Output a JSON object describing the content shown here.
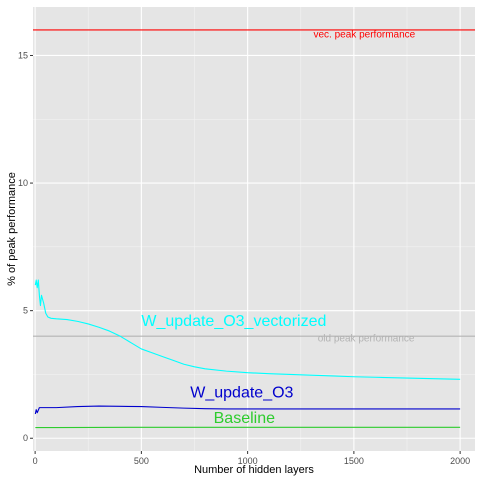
{
  "chart_data": {
    "type": "line",
    "title": "",
    "xlabel": "Number of hidden layers",
    "ylabel": "% of peak performance",
    "xlim": [
      -10,
      2070
    ],
    "ylim": [
      -0.5,
      16.9
    ],
    "x_ticks": [
      0,
      500,
      1000,
      1500,
      2000
    ],
    "x_tick_labels": [
      "0",
      "500",
      "1000",
      "1500",
      "2000"
    ],
    "y_ticks": [
      0,
      5,
      10,
      15
    ],
    "y_tick_labels": [
      "0",
      "5",
      "10",
      "15"
    ],
    "grid": true,
    "background": "#e5e5e5",
    "series": [
      {
        "name": "W_update_O3_vectorized",
        "color": "#00ffff",
        "x": [
          1,
          5,
          10,
          15,
          20,
          25,
          30,
          40,
          50,
          60,
          75,
          100,
          150,
          200,
          250,
          300,
          350,
          400,
          450,
          500,
          550,
          600,
          650,
          700,
          750,
          800,
          900,
          1000,
          1100,
          1200,
          1300,
          1400,
          1500,
          1600,
          1700,
          1800,
          1900,
          2000
        ],
        "y": [
          6.0,
          6.2,
          5.9,
          6.2,
          5.6,
          5.2,
          5.6,
          5.3,
          4.9,
          4.75,
          4.7,
          4.68,
          4.65,
          4.58,
          4.48,
          4.35,
          4.2,
          4.0,
          3.75,
          3.5,
          3.35,
          3.2,
          3.05,
          2.9,
          2.8,
          2.72,
          2.63,
          2.57,
          2.53,
          2.5,
          2.47,
          2.44,
          2.41,
          2.39,
          2.37,
          2.35,
          2.33,
          2.31
        ]
      },
      {
        "name": "W_update_O3",
        "color": "#0000cd",
        "x": [
          1,
          5,
          10,
          20,
          50,
          100,
          200,
          300,
          400,
          500,
          600,
          700,
          800,
          900,
          1000,
          1200,
          1400,
          1600,
          1800,
          2000
        ],
        "y": [
          0.95,
          1.12,
          1.0,
          1.2,
          1.2,
          1.2,
          1.24,
          1.26,
          1.25,
          1.24,
          1.21,
          1.18,
          1.16,
          1.15,
          1.15,
          1.15,
          1.15,
          1.15,
          1.15,
          1.15
        ]
      },
      {
        "name": "Baseline",
        "color": "#2ecc2e",
        "x": [
          1,
          100,
          500,
          1000,
          1500,
          2000
        ],
        "y": [
          0.42,
          0.42,
          0.43,
          0.43,
          0.43,
          0.43
        ]
      }
    ],
    "reference_lines": [
      {
        "label": "vec. peak performance",
        "y": 16.0,
        "color": "#ff0000"
      },
      {
        "label": "old peak performance",
        "y": 4.0,
        "color": "#b3b3b3"
      }
    ],
    "annotations": [
      {
        "text": "vec. peak performance",
        "x": 1310,
        "y": 15.7,
        "color": "#ff0000",
        "size": "small"
      },
      {
        "text": "old peak performance",
        "x": 1330,
        "y": 3.8,
        "color": "#b3b3b3",
        "size": "small"
      },
      {
        "text": "W_update_O3_vectorized",
        "x": 500,
        "y": 4.4,
        "color": "#00ffff",
        "size": "large"
      },
      {
        "text": "W_update_O3",
        "x": 730,
        "y": 1.6,
        "color": "#0000cd",
        "size": "large"
      },
      {
        "text": "Baseline",
        "x": 840,
        "y": 0.6,
        "color": "#2ecc2e",
        "size": "large"
      }
    ]
  }
}
